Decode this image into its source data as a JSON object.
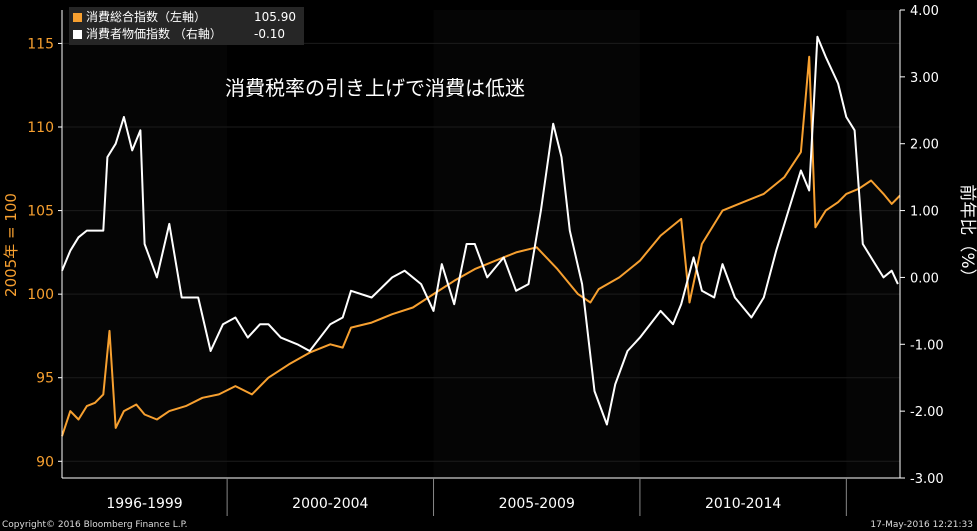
{
  "chart_data": {
    "type": "line",
    "title": "消費税率の引き上げで消費は低迷",
    "left_axis": {
      "label": "2005年 = 100",
      "range": [
        89,
        117
      ],
      "ticks": [
        90,
        95,
        100,
        105,
        110,
        115
      ],
      "color": "#f7a030"
    },
    "right_axis": {
      "label": "前年比（%）",
      "range": [
        -3.0,
        4.0
      ],
      "ticks": [
        "4.00",
        "3.00",
        "2.00",
        "1.00",
        "0.00",
        "-1.00",
        "-2.00",
        "-3.00"
      ],
      "color": "#ffffff"
    },
    "x_range": [
      1996,
      2016.3
    ],
    "period_labels": [
      {
        "text": "1996-1999",
        "center": 1998.0
      },
      {
        "text": "2000-2004",
        "center": 2002.5
      },
      {
        "text": "2005-2009",
        "center": 2007.5
      },
      {
        "text": "2010-2014",
        "center": 2012.5
      }
    ],
    "period_dividers": [
      2000,
      2005,
      2010,
      2015
    ],
    "series": [
      {
        "name": "消費総合指数（左軸）",
        "axis": "left",
        "color": "#f7a030",
        "last_value": "105.90",
        "points": [
          [
            1996.0,
            91.5
          ],
          [
            1996.2,
            93.0
          ],
          [
            1996.4,
            92.5
          ],
          [
            1996.6,
            93.3
          ],
          [
            1996.8,
            93.5
          ],
          [
            1997.0,
            94.0
          ],
          [
            1997.15,
            97.8
          ],
          [
            1997.3,
            92.0
          ],
          [
            1997.5,
            93.0
          ],
          [
            1997.8,
            93.4
          ],
          [
            1998.0,
            92.8
          ],
          [
            1998.3,
            92.5
          ],
          [
            1998.6,
            93.0
          ],
          [
            1999.0,
            93.3
          ],
          [
            1999.4,
            93.8
          ],
          [
            1999.8,
            94.0
          ],
          [
            2000.2,
            94.5
          ],
          [
            2000.6,
            94.0
          ],
          [
            2001.0,
            95.0
          ],
          [
            2001.5,
            95.8
          ],
          [
            2002.0,
            96.5
          ],
          [
            2002.5,
            97.0
          ],
          [
            2002.8,
            96.8
          ],
          [
            2003.0,
            98.0
          ],
          [
            2003.5,
            98.3
          ],
          [
            2004.0,
            98.8
          ],
          [
            2004.5,
            99.2
          ],
          [
            2005.0,
            100.0
          ],
          [
            2005.5,
            100.8
          ],
          [
            2006.0,
            101.5
          ],
          [
            2006.5,
            102.0
          ],
          [
            2007.0,
            102.5
          ],
          [
            2007.5,
            102.8
          ],
          [
            2008.0,
            101.5
          ],
          [
            2008.5,
            100.0
          ],
          [
            2008.8,
            99.5
          ],
          [
            2009.0,
            100.3
          ],
          [
            2009.5,
            101.0
          ],
          [
            2010.0,
            102.0
          ],
          [
            2010.5,
            103.5
          ],
          [
            2011.0,
            104.5
          ],
          [
            2011.2,
            99.5
          ],
          [
            2011.5,
            103.0
          ],
          [
            2012.0,
            105.0
          ],
          [
            2012.5,
            105.5
          ],
          [
            2013.0,
            106.0
          ],
          [
            2013.5,
            107.0
          ],
          [
            2013.9,
            108.5
          ],
          [
            2014.1,
            114.2
          ],
          [
            2014.25,
            104.0
          ],
          [
            2014.5,
            105.0
          ],
          [
            2014.8,
            105.5
          ],
          [
            2015.0,
            106.0
          ],
          [
            2015.3,
            106.3
          ],
          [
            2015.6,
            106.8
          ],
          [
            2015.9,
            106.0
          ],
          [
            2016.1,
            105.4
          ],
          [
            2016.3,
            105.9
          ]
        ]
      },
      {
        "name": "消費者物価指数 （右軸）",
        "axis": "right",
        "color": "#ffffff",
        "last_value": "-0.10",
        "points": [
          [
            1996.0,
            0.1
          ],
          [
            1996.2,
            0.4
          ],
          [
            1996.4,
            0.6
          ],
          [
            1996.6,
            0.7
          ],
          [
            1996.8,
            0.7
          ],
          [
            1997.0,
            0.7
          ],
          [
            1997.1,
            1.8
          ],
          [
            1997.3,
            2.0
          ],
          [
            1997.5,
            2.4
          ],
          [
            1997.7,
            1.9
          ],
          [
            1997.9,
            2.2
          ],
          [
            1998.0,
            0.5
          ],
          [
            1998.3,
            0.0
          ],
          [
            1998.6,
            0.8
          ],
          [
            1998.9,
            -0.3
          ],
          [
            1999.3,
            -0.3
          ],
          [
            1999.6,
            -1.1
          ],
          [
            1999.9,
            -0.7
          ],
          [
            2000.2,
            -0.6
          ],
          [
            2000.5,
            -0.9
          ],
          [
            2000.8,
            -0.7
          ],
          [
            2001.0,
            -0.7
          ],
          [
            2001.3,
            -0.9
          ],
          [
            2001.7,
            -1.0
          ],
          [
            2002.0,
            -1.1
          ],
          [
            2002.5,
            -0.7
          ],
          [
            2002.8,
            -0.6
          ],
          [
            2003.0,
            -0.2
          ],
          [
            2003.5,
            -0.3
          ],
          [
            2004.0,
            0.0
          ],
          [
            2004.3,
            0.1
          ],
          [
            2004.7,
            -0.1
          ],
          [
            2005.0,
            -0.5
          ],
          [
            2005.2,
            0.2
          ],
          [
            2005.5,
            -0.4
          ],
          [
            2005.8,
            0.5
          ],
          [
            2006.0,
            0.5
          ],
          [
            2006.3,
            0.0
          ],
          [
            2006.7,
            0.3
          ],
          [
            2007.0,
            -0.2
          ],
          [
            2007.3,
            -0.1
          ],
          [
            2007.6,
            1.0
          ],
          [
            2007.9,
            2.3
          ],
          [
            2008.1,
            1.8
          ],
          [
            2008.3,
            0.7
          ],
          [
            2008.6,
            -0.1
          ],
          [
            2008.9,
            -1.7
          ],
          [
            2009.2,
            -2.2
          ],
          [
            2009.4,
            -1.6
          ],
          [
            2009.7,
            -1.1
          ],
          [
            2010.0,
            -0.9
          ],
          [
            2010.5,
            -0.5
          ],
          [
            2010.8,
            -0.7
          ],
          [
            2011.0,
            -0.4
          ],
          [
            2011.3,
            0.3
          ],
          [
            2011.5,
            -0.2
          ],
          [
            2011.8,
            -0.3
          ],
          [
            2012.0,
            0.2
          ],
          [
            2012.3,
            -0.3
          ],
          [
            2012.7,
            -0.6
          ],
          [
            2013.0,
            -0.3
          ],
          [
            2013.3,
            0.4
          ],
          [
            2013.6,
            1.0
          ],
          [
            2013.9,
            1.6
          ],
          [
            2014.1,
            1.3
          ],
          [
            2014.3,
            3.6
          ],
          [
            2014.5,
            3.3
          ],
          [
            2014.8,
            2.9
          ],
          [
            2015.0,
            2.4
          ],
          [
            2015.2,
            2.2
          ],
          [
            2015.4,
            0.5
          ],
          [
            2015.7,
            0.2
          ],
          [
            2015.9,
            0.0
          ],
          [
            2016.1,
            0.1
          ],
          [
            2016.25,
            -0.1
          ]
        ]
      }
    ]
  },
  "footer": {
    "copyright": "Copyright© 2016 Bloomberg Finance L.P.",
    "timestamp": "17-May-2016 12:21:33"
  }
}
